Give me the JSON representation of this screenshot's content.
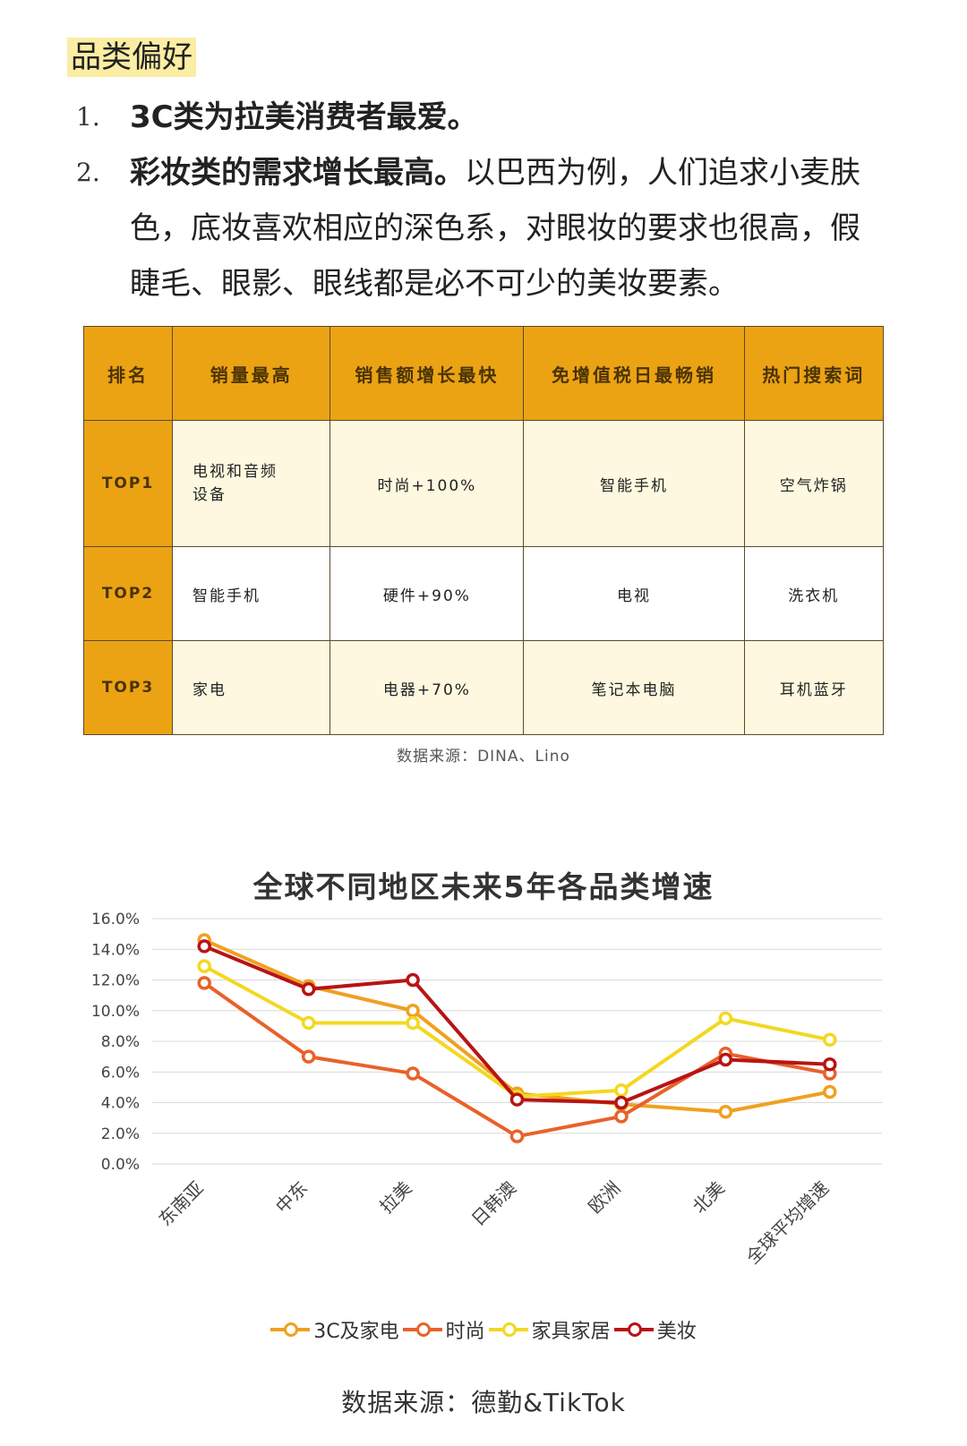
{
  "heading": "品类偏好",
  "list": [
    {
      "num": "1.",
      "bold": "3C类为拉美消费者最爱。",
      "rest": ""
    },
    {
      "num": "2.",
      "bold": "彩妆类的需求增长最高。",
      "rest": "以巴西为例，人们追求小麦肤色，底妆喜欢相应的深色系，对眼妆的要求也很高，假睫毛、眼影、眼线都是必不可少的美妆要素。"
    }
  ],
  "table": {
    "headers": [
      "排名",
      "销量最高",
      "销售额增长最快",
      "免增值税日最畅销",
      "热门搜索词"
    ],
    "rows": [
      {
        "rank": "TOP1",
        "top_sales": "电视和音频设备",
        "fastest_growth": "时尚+100%",
        "vat_free_best": "智能手机",
        "hot_search": "空气炸锅"
      },
      {
        "rank": "TOP2",
        "top_sales": "智能手机",
        "fastest_growth": "硬件+90%",
        "vat_free_best": "电视",
        "hot_search": "洗衣机"
      },
      {
        "rank": "TOP3",
        "top_sales": "家电",
        "fastest_growth": "电器+70%",
        "vat_free_best": "笔记本电脑",
        "hot_search": "耳机蓝牙"
      }
    ]
  },
  "table_source": "数据来源：DINA、Lino",
  "chart_source": "数据来源：德勤&TikTok",
  "chart_data": {
    "type": "line",
    "title": "全球不同地区未来5年各品类增速",
    "xlabel": "",
    "ylabel": "",
    "categories": [
      "东南亚",
      "中东",
      "拉美",
      "日韩澳",
      "欧洲",
      "北美",
      "全球平均增速"
    ],
    "ylim": [
      0,
      16
    ],
    "y_ticks": [
      "0.0%",
      "2.0%",
      "4.0%",
      "6.0%",
      "8.0%",
      "10.0%",
      "12.0%",
      "14.0%",
      "16.0%"
    ],
    "grid": true,
    "legend": "bottom",
    "series": [
      {
        "name": "3C及家电",
        "color": "#f0a020",
        "values": [
          14.6,
          11.6,
          10.0,
          4.6,
          3.9,
          3.4,
          4.7
        ]
      },
      {
        "name": "时尚",
        "color": "#e8622a",
        "values": [
          11.8,
          7.0,
          5.9,
          1.8,
          3.1,
          7.2,
          5.9
        ]
      },
      {
        "name": "家具家居",
        "color": "#f3d820",
        "values": [
          12.9,
          9.2,
          9.2,
          4.4,
          4.8,
          9.5,
          8.1
        ]
      },
      {
        "name": "美妆",
        "color": "#b81414",
        "values": [
          14.2,
          11.4,
          12.0,
          4.2,
          4.0,
          6.8,
          6.5
        ]
      }
    ]
  }
}
